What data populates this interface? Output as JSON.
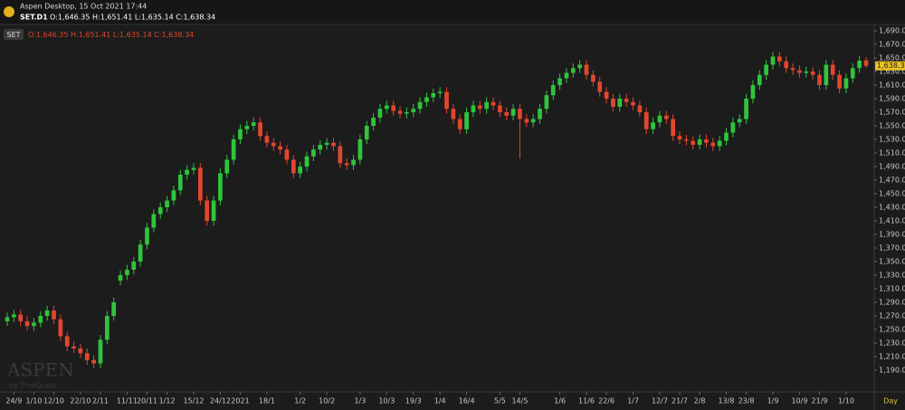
{
  "header": {
    "title": "Aspen Desktop, 15 Oct 2021 17:44",
    "symbol": "SET.D1",
    "ohlc": "O:1,646.35 H:1,651.41 L:1,635.14 C:1,638.34"
  },
  "legend": {
    "badge": "SET",
    "ohlc": "O:1,646.35 H:1,651.41 L:1,635.14 C:1,638.34"
  },
  "watermark": {
    "brand": "ASPEN",
    "sub": "by ThaiQuest"
  },
  "chart_data": {
    "type": "candlestick",
    "x_label": "Day",
    "last_price_label": "1,638.34",
    "up_color": "#2fc53c",
    "down_color": "#e2462e",
    "categories": [
      null,
      "24/9",
      null,
      null,
      "1/10",
      null,
      null,
      "12/10",
      null,
      null,
      null,
      "22/10",
      null,
      null,
      "2/11",
      null,
      null,
      null,
      "11/11",
      null,
      null,
      "20/11",
      null,
      null,
      "1/12",
      null,
      null,
      null,
      "15/12",
      null,
      null,
      null,
      "24/12",
      null,
      null,
      "2021",
      null,
      null,
      null,
      "18/1",
      null,
      null,
      null,
      null,
      "1/2",
      null,
      null,
      null,
      "10/2",
      null,
      null,
      null,
      null,
      "1/3",
      null,
      null,
      null,
      "10/3",
      null,
      null,
      null,
      "19/3",
      null,
      null,
      null,
      "1/4",
      null,
      null,
      null,
      "16/4",
      null,
      null,
      null,
      null,
      "5/5",
      null,
      null,
      "14/5",
      null,
      null,
      null,
      null,
      null,
      "1/6",
      null,
      null,
      null,
      "11/6",
      null,
      null,
      "22/6",
      null,
      null,
      null,
      "1/7",
      null,
      null,
      null,
      "12/7",
      null,
      null,
      "21/7",
      null,
      null,
      "2/8",
      null,
      null,
      null,
      "13/8",
      null,
      null,
      "23/8",
      null,
      null,
      null,
      "1/9",
      null,
      null,
      null,
      "10/9",
      null,
      null,
      "21/9",
      null,
      null,
      null,
      "1/10",
      null,
      null,
      null
    ],
    "open": [
      1262,
      1268,
      1272,
      1262,
      1255,
      1260,
      1270,
      1278,
      1265,
      1240,
      1225,
      1222,
      1215,
      1205,
      1200,
      1235,
      1270,
      1322,
      1330,
      1338,
      1350,
      1375,
      1400,
      1420,
      1430,
      1440,
      1455,
      1478,
      1485,
      1488,
      1440,
      1410,
      1440,
      1480,
      1500,
      1530,
      1545,
      1550,
      1555,
      1535,
      1525,
      1520,
      1515,
      1500,
      1480,
      1490,
      1505,
      1515,
      1522,
      1525,
      1520,
      1495,
      1492,
      1500,
      1530,
      1550,
      1562,
      1575,
      1580,
      1572,
      1568,
      1570,
      1575,
      1585,
      1592,
      1598,
      1600,
      1575,
      1560,
      1545,
      1570,
      1580,
      1575,
      1585,
      1580,
      1570,
      1565,
      1575,
      1560,
      1555,
      1560,
      1575,
      1595,
      1610,
      1620,
      1628,
      1635,
      1640,
      1625,
      1615,
      1600,
      1590,
      1578,
      1590,
      1585,
      1580,
      1570,
      1545,
      1555,
      1565,
      1560,
      1535,
      1530,
      1528,
      1522,
      1530,
      1525,
      1520,
      1528,
      1540,
      1555,
      1560,
      1590,
      1610,
      1625,
      1640,
      1652,
      1645,
      1635,
      1632,
      1628,
      1630,
      1625,
      1610,
      1640,
      1625,
      1605,
      1620,
      1635,
      1646.35
    ],
    "high": [
      1275,
      1279,
      1279,
      1269,
      1267,
      1277,
      1285,
      1285,
      1272,
      1247,
      1232,
      1229,
      1222,
      1212,
      1242,
      1277,
      1297,
      1337,
      1345,
      1357,
      1382,
      1407,
      1427,
      1437,
      1447,
      1462,
      1485,
      1492,
      1495,
      1495,
      1447,
      1447,
      1487,
      1507,
      1537,
      1552,
      1557,
      1562,
      1562,
      1542,
      1532,
      1527,
      1522,
      1507,
      1497,
      1512,
      1522,
      1529,
      1532,
      1532,
      1527,
      1502,
      1507,
      1537,
      1557,
      1569,
      1582,
      1587,
      1587,
      1579,
      1577,
      1582,
      1592,
      1599,
      1605,
      1607,
      1607,
      1582,
      1567,
      1577,
      1587,
      1587,
      1592,
      1592,
      1587,
      1577,
      1582,
      1582,
      1567,
      1567,
      1582,
      1602,
      1617,
      1627,
      1635,
      1642,
      1647,
      1647,
      1632,
      1622,
      1607,
      1597,
      1597,
      1597,
      1592,
      1587,
      1577,
      1562,
      1572,
      1572,
      1567,
      1542,
      1537,
      1535,
      1537,
      1537,
      1532,
      1535,
      1547,
      1562,
      1567,
      1597,
      1617,
      1632,
      1647,
      1659,
      1659,
      1652,
      1642,
      1639,
      1637,
      1637,
      1632,
      1647,
      1647,
      1632,
      1627,
      1642,
      1653,
      1651.41
    ],
    "low": [
      1255,
      1261,
      1255,
      1248,
      1248,
      1253,
      1263,
      1258,
      1233,
      1218,
      1215,
      1208,
      1198,
      1193,
      1193,
      1228,
      1263,
      1315,
      1323,
      1331,
      1343,
      1368,
      1393,
      1413,
      1423,
      1433,
      1448,
      1471,
      1478,
      1433,
      1403,
      1403,
      1433,
      1473,
      1493,
      1523,
      1538,
      1543,
      1528,
      1518,
      1513,
      1508,
      1493,
      1473,
      1473,
      1483,
      1498,
      1508,
      1515,
      1513,
      1488,
      1485,
      1485,
      1493,
      1523,
      1543,
      1555,
      1568,
      1565,
      1561,
      1561,
      1563,
      1568,
      1578,
      1585,
      1591,
      1568,
      1553,
      1538,
      1538,
      1563,
      1568,
      1568,
      1573,
      1563,
      1558,
      1558,
      1502,
      1548,
      1548,
      1553,
      1568,
      1588,
      1603,
      1613,
      1621,
      1628,
      1618,
      1608,
      1593,
      1583,
      1571,
      1571,
      1578,
      1573,
      1563,
      1538,
      1538,
      1548,
      1553,
      1528,
      1523,
      1521,
      1515,
      1515,
      1518,
      1513,
      1513,
      1521,
      1533,
      1548,
      1553,
      1583,
      1603,
      1618,
      1633,
      1638,
      1628,
      1625,
      1621,
      1621,
      1618,
      1603,
      1603,
      1618,
      1598,
      1598,
      1613,
      1628,
      1635.14
    ],
    "close": [
      1268,
      1272,
      1262,
      1255,
      1260,
      1270,
      1278,
      1265,
      1240,
      1225,
      1222,
      1215,
      1205,
      1200,
      1235,
      1270,
      1290,
      1330,
      1338,
      1350,
      1375,
      1400,
      1420,
      1430,
      1440,
      1455,
      1478,
      1485,
      1488,
      1440,
      1410,
      1440,
      1480,
      1500,
      1530,
      1545,
      1550,
      1555,
      1535,
      1525,
      1520,
      1515,
      1500,
      1480,
      1490,
      1505,
      1515,
      1522,
      1525,
      1520,
      1495,
      1492,
      1500,
      1530,
      1550,
      1562,
      1575,
      1580,
      1572,
      1568,
      1570,
      1575,
      1585,
      1592,
      1598,
      1600,
      1575,
      1560,
      1545,
      1570,
      1580,
      1575,
      1585,
      1580,
      1570,
      1565,
      1575,
      1560,
      1555,
      1560,
      1575,
      1595,
      1610,
      1620,
      1628,
      1635,
      1640,
      1625,
      1615,
      1600,
      1590,
      1578,
      1590,
      1585,
      1580,
      1570,
      1545,
      1555,
      1565,
      1560,
      1535,
      1530,
      1528,
      1522,
      1530,
      1525,
      1520,
      1528,
      1540,
      1555,
      1560,
      1590,
      1610,
      1625,
      1640,
      1652,
      1645,
      1635,
      1632,
      1628,
      1630,
      1625,
      1610,
      1640,
      1625,
      1605,
      1620,
      1635,
      1646,
      1638.34
    ],
    "ylim": [
      1190,
      1690
    ],
    "yticks": [
      {
        "value": 1190,
        "label": "1,190.00"
      },
      {
        "value": 1210,
        "label": "1,210.00"
      },
      {
        "value": 1230,
        "label": "1,230.00"
      },
      {
        "value": 1250,
        "label": "1,250.00"
      },
      {
        "value": 1270,
        "label": "1,270.00"
      },
      {
        "value": 1290,
        "label": "1,290.00"
      },
      {
        "value": 1310,
        "label": "1,310.00"
      },
      {
        "value": 1330,
        "label": "1,330.00"
      },
      {
        "value": 1350,
        "label": "1,350.00"
      },
      {
        "value": 1370,
        "label": "1,370.00"
      },
      {
        "value": 1390,
        "label": "1,390.00"
      },
      {
        "value": 1410,
        "label": "1,410.00"
      },
      {
        "value": 1430,
        "label": "1,430.00"
      },
      {
        "value": 1450,
        "label": "1,450.00"
      },
      {
        "value": 1470,
        "label": "1,470.00"
      },
      {
        "value": 1490,
        "label": "1,490.00"
      },
      {
        "value": 1510,
        "label": "1,510.00"
      },
      {
        "value": 1530,
        "label": "1,530.00"
      },
      {
        "value": 1550,
        "label": "1,550.00"
      },
      {
        "value": 1570,
        "label": "1,570.00"
      },
      {
        "value": 1590,
        "label": "1,590.00"
      },
      {
        "value": 1610,
        "label": "1,610.00"
      },
      {
        "value": 1630,
        "label": "1,630.00"
      },
      {
        "value": 1650,
        "label": "1,650.00"
      },
      {
        "value": 1670,
        "label": "1,670.00"
      },
      {
        "value": 1690,
        "label": "1,690.00"
      }
    ]
  }
}
